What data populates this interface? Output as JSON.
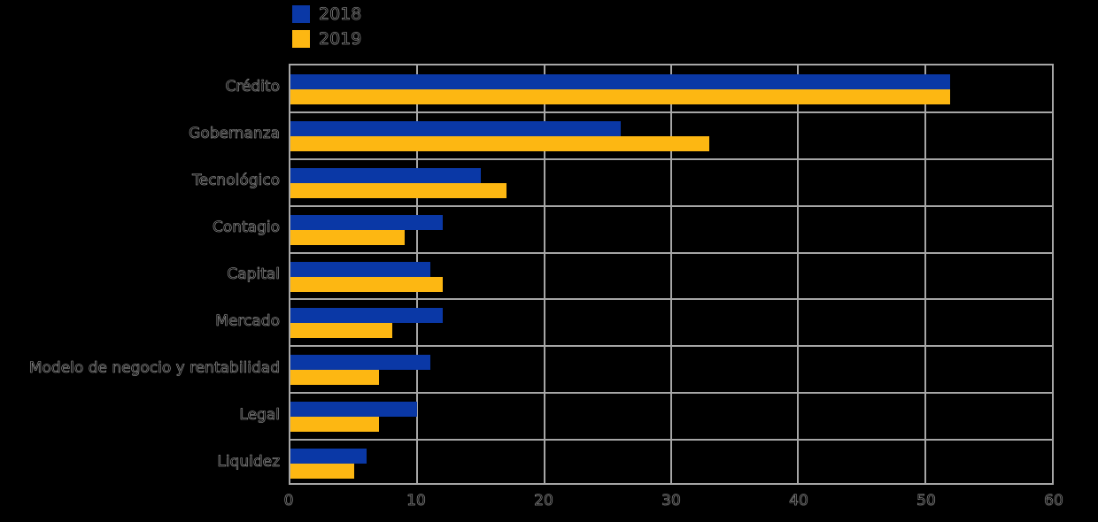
{
  "colors": {
    "background": "#000000",
    "grid": "#a6a6a6",
    "series_2018": "#0a38a6",
    "series_2019": "#fdb712"
  },
  "legend": {
    "items": [
      {
        "label": "2018",
        "color": "#0a38a6"
      },
      {
        "label": "2019",
        "color": "#fdb712"
      }
    ]
  },
  "chart_data": {
    "type": "bar",
    "orientation": "horizontal",
    "title": "",
    "xlabel": "",
    "ylabel": "",
    "categories": [
      "Crédito",
      "Gobernanza",
      "Tecnológico",
      "Contagio",
      "Capital",
      "Mercado",
      "Modelo de negocio y rentabilidad",
      "Legal",
      "Liquidez"
    ],
    "series": [
      {
        "name": "2018",
        "color": "#0a38a6",
        "values": [
          52,
          26,
          15,
          12,
          11,
          12,
          11,
          10,
          6
        ]
      },
      {
        "name": "2019",
        "color": "#fdb712",
        "values": [
          52,
          33,
          17,
          9,
          12,
          8,
          7,
          7,
          5
        ]
      }
    ],
    "xlim": [
      0,
      60
    ],
    "xticks": [
      0,
      10,
      20,
      30,
      40,
      50,
      60
    ],
    "grid": true,
    "legend_position": "top-left-of-plot"
  }
}
